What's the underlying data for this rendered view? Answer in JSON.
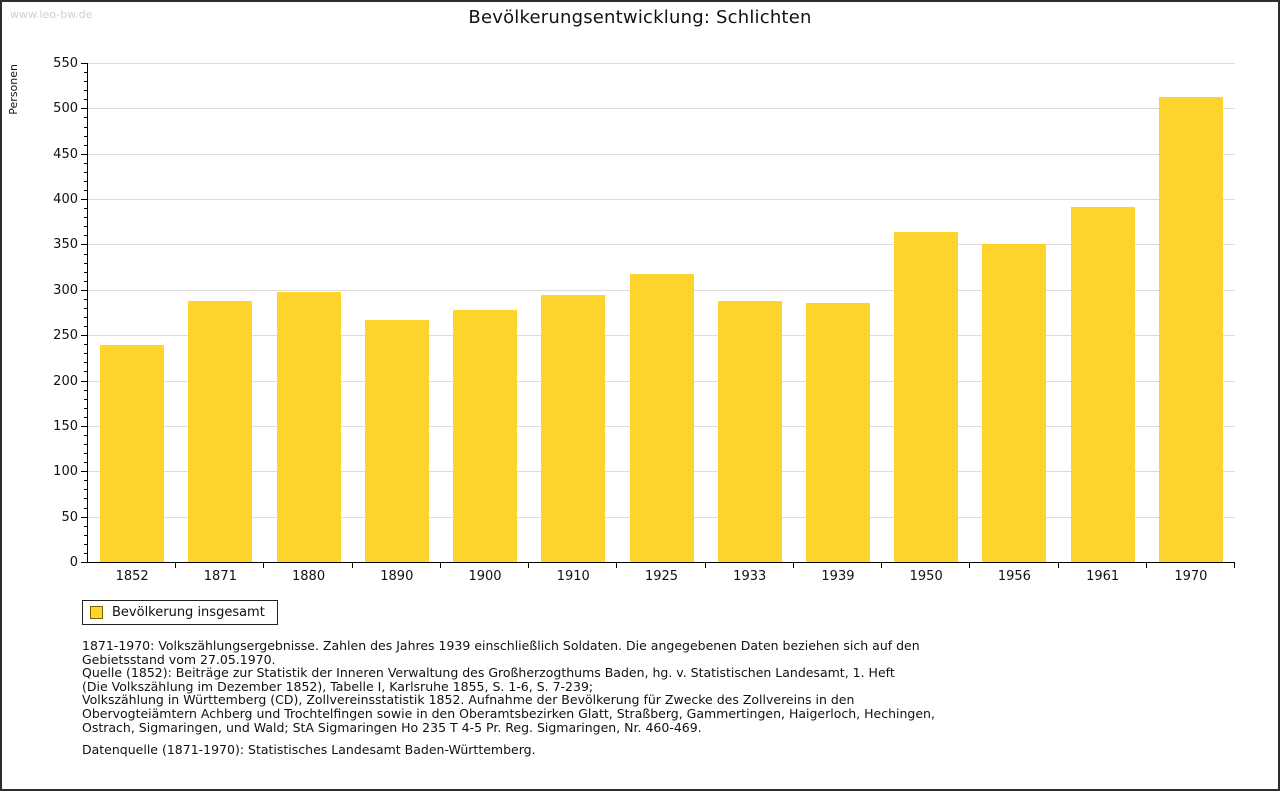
{
  "watermark": "www.leo-bw.de",
  "title": "Bevölkerungsentwicklung: Schlichten",
  "chart_data": {
    "type": "bar",
    "title": "Bevölkerungsentwicklung: Schlichten",
    "xlabel": "",
    "ylabel": "Personen",
    "categories": [
      "1852",
      "1871",
      "1880",
      "1890",
      "1900",
      "1910",
      "1925",
      "1933",
      "1939",
      "1950",
      "1956",
      "1961",
      "1970"
    ],
    "values": [
      239,
      288,
      298,
      267,
      278,
      294,
      317,
      288,
      286,
      364,
      351,
      391,
      513
    ],
    "ylim": [
      0,
      550
    ],
    "y_tick_step": 50,
    "y_minor_tick_step": 10,
    "grid": true,
    "bar_color": "#FCD42B",
    "legend_entries": [
      {
        "label": "Bevölkerung insgesamt",
        "color": "#FCD42B"
      }
    ],
    "legend_position": "bottom-left"
  },
  "legend": {
    "label": "Bevölkerung insgesamt",
    "swatch_color": "#FCD42B",
    "swatch_border_color": "#7a6400"
  },
  "footnotes": [
    "1871-1970: Volkszählungsergebnisse. Zahlen des Jahres 1939 einschließlich Soldaten. Die angegebenen Daten beziehen sich auf den",
    "Gebietsstand vom 27.05.1970.",
    "Quelle (1852): Beiträge zur Statistik der Inneren Verwaltung des Großherzogthums Baden, hg. v. Statistischen Landesamt, 1. Heft",
    "(Die Volkszählung im Dezember 1852), Tabelle I, Karlsruhe 1855, S. 1-6, S. 7-239;",
    "Volkszählung in Württemberg (CD), Zollvereinsstatistik 1852. Aufnahme der Bevölkerung für Zwecke des Zollvereins in den",
    "Obervogteiämtern Achberg und Trochtelfingen sowie in den Oberamtsbezirken Glatt, Straßberg, Gammertingen, Haigerloch, Hechingen,",
    "Ostrach, Sigmaringen, und Wald; StA Sigmaringen Ho 235 T 4-5 Pr. Reg. Sigmaringen, Nr. 460-469."
  ],
  "datasource": "Datenquelle (1871-1970): Statistisches Landesamt Baden-Württemberg."
}
